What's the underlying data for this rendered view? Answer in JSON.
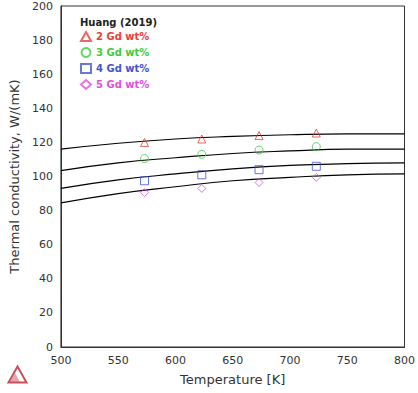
{
  "chart_data": {
    "type": "scatter",
    "xlabel": "Temperature [K]",
    "ylabel": "Thermal conductivity, W/(mK)",
    "legend_title": "Huang (2019)",
    "legend": "upper left",
    "grid": false,
    "xlim": [
      500,
      800
    ],
    "xticks": [
      500,
      550,
      600,
      650,
      700,
      750,
      800
    ],
    "ylim": [
      0,
      200
    ],
    "yticks": [
      0,
      20,
      40,
      60,
      80,
      100,
      120,
      140,
      160,
      180,
      200
    ],
    "series": [
      {
        "name": "2 Gd wt%",
        "type": "scatter",
        "marker": "triangle",
        "color": "#e8403a",
        "x": [
          573,
          623,
          673,
          723
        ],
        "values": [
          120,
          122,
          124,
          125.5
        ]
      },
      {
        "name": "3 Gd wt%",
        "type": "scatter",
        "marker": "circle",
        "color": "#3dcc3d",
        "x": [
          573,
          623,
          673,
          723
        ],
        "values": [
          110.5,
          113,
          115.5,
          117.5
        ]
      },
      {
        "name": "4 Gd wt%",
        "type": "scatter",
        "marker": "square",
        "color": "#4455cc",
        "x": [
          573,
          623,
          673,
          723
        ],
        "values": [
          97.5,
          101,
          104,
          106
        ]
      },
      {
        "name": "5 Gd wt%",
        "type": "scatter",
        "marker": "diamond",
        "color": "#e050e0",
        "x": [
          573,
          623,
          673,
          723
        ],
        "values": [
          90.5,
          93,
          96.5,
          99.5
        ]
      },
      {
        "type": "line",
        "line_style": "solid",
        "color": "#000000",
        "x": [
          500,
          550,
          600,
          650,
          700,
          750,
          800
        ],
        "values": [
          116,
          119.5,
          122,
          123.5,
          124.5,
          125,
          125
        ]
      },
      {
        "type": "line",
        "line_style": "solid",
        "color": "#000000",
        "x": [
          500,
          550,
          600,
          650,
          700,
          750,
          800
        ],
        "values": [
          103.5,
          108,
          111,
          113.5,
          115,
          116,
          116
        ]
      },
      {
        "type": "line",
        "line_style": "solid",
        "color": "#000000",
        "x": [
          500,
          550,
          600,
          650,
          700,
          750,
          800
        ],
        "values": [
          93,
          98,
          101.5,
          104.5,
          106.5,
          107.5,
          108
        ]
      },
      {
        "type": "line",
        "line_style": "solid",
        "color": "#000000",
        "x": [
          500,
          550,
          600,
          650,
          700,
          750,
          800
        ],
        "values": [
          84.5,
          90,
          94,
          97.5,
          99.5,
          101,
          101.5
        ]
      }
    ]
  }
}
